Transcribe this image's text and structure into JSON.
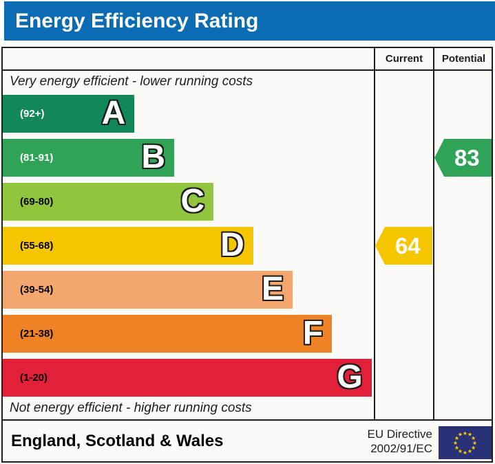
{
  "title": "Energy Efficiency Rating",
  "table": {
    "header": {
      "current": "Current",
      "potential": "Potential"
    },
    "caption_top": "Very energy efficient - lower running costs",
    "caption_bottom": "Not energy efficient - higher running costs"
  },
  "bands": [
    {
      "letter": "A",
      "range": "(92+)",
      "color": "#12885a",
      "width_pct": 35.5,
      "label_color": "#ffffff"
    },
    {
      "letter": "B",
      "range": "(81-91)",
      "color": "#2fa357",
      "width_pct": 46.2,
      "label_color": "#ffffff"
    },
    {
      "letter": "C",
      "range": "(69-80)",
      "color": "#91c53e",
      "width_pct": 56.8,
      "label_color": "#000000"
    },
    {
      "letter": "D",
      "range": "(55-68)",
      "color": "#f5c500",
      "width_pct": 67.5,
      "label_color": "#000000"
    },
    {
      "letter": "E",
      "range": "(39-54)",
      "color": "#f3a76f",
      "width_pct": 78.1,
      "label_color": "#000000"
    },
    {
      "letter": "F",
      "range": "(21-38)",
      "color": "#ee8225",
      "width_pct": 88.7,
      "label_color": "#000000"
    },
    {
      "letter": "G",
      "range": "(1-20)",
      "color": "#e3203a",
      "width_pct": 99.4,
      "label_color": "#000000"
    }
  ],
  "ratings": {
    "current": {
      "value": 64,
      "band": "D",
      "band_index": 3,
      "color": "#f5c500"
    },
    "potential": {
      "value": 83,
      "band": "B",
      "band_index": 1,
      "color": "#2fa357"
    }
  },
  "footer": {
    "region": "England, Scotland & Wales",
    "directive_line1": "EU Directive",
    "directive_line2": "2002/91/EC",
    "flag_icon": "eu-flag",
    "flag_bg_color": "#293276",
    "flag_star_color": "#ffcc00"
  },
  "colors": {
    "title_bar": "#0b6cb4",
    "border": "#1d1d1b",
    "cell_background": "#fcfbf7"
  },
  "chart_data": {
    "type": "bar",
    "title": "Energy Efficiency Rating",
    "categories": [
      "A",
      "B",
      "C",
      "D",
      "E",
      "F",
      "G"
    ],
    "band_score_ranges": [
      "92+",
      "81-91",
      "69-80",
      "55-68",
      "39-54",
      "21-38",
      "1-20"
    ],
    "band_colors": [
      "#12885a",
      "#2fa357",
      "#91c53e",
      "#f5c500",
      "#f3a76f",
      "#ee8225",
      "#e3203a"
    ],
    "bar_relative_lengths_pct": [
      35.5,
      46.2,
      56.8,
      67.5,
      78.1,
      88.7,
      99.4
    ],
    "series": [
      {
        "name": "Current",
        "value": 64,
        "band": "D"
      },
      {
        "name": "Potential",
        "value": 83,
        "band": "B"
      }
    ],
    "top_caption": "Very energy efficient - lower running costs",
    "bottom_caption": "Not energy efficient - higher running costs",
    "region": "England, Scotland & Wales",
    "directive": "EU Directive 2002/91/EC"
  }
}
